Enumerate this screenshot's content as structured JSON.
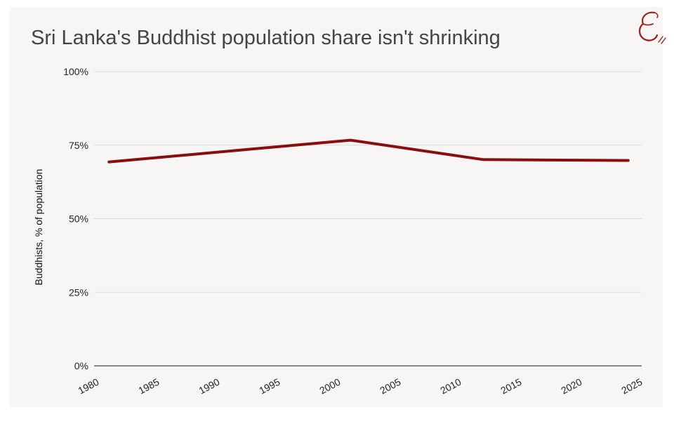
{
  "chart_data": {
    "type": "line",
    "title": "Sri Lanka's Buddhist population share isn't shrinking",
    "xlabel": "",
    "ylabel": "Buddhists, % of population",
    "xlim": [
      1980,
      2025
    ],
    "ylim": [
      0,
      100
    ],
    "x_ticks": [
      "1980",
      "1985",
      "1990",
      "1995",
      "2000",
      "2005",
      "2010",
      "2015",
      "2020",
      "2025"
    ],
    "y_ticks": [
      "0%",
      "25%",
      "50%",
      "75%",
      "100%"
    ],
    "grid": true,
    "series": [
      {
        "color": "#8b0d0d",
        "x": [
          1981,
          2001,
          2012,
          2024
        ],
        "y": [
          69.3,
          76.7,
          70.1,
          69.8
        ]
      }
    ]
  },
  "logo": {
    "color": "#a01c1c"
  }
}
